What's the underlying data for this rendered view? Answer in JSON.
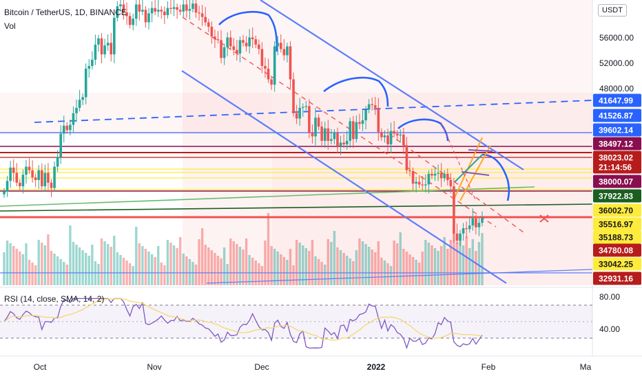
{
  "header": {
    "symbol": "Bitcoin / TetherUS, 1D, BINANCE",
    "volume_label": "Vol",
    "currency_button": "USDT"
  },
  "price_axis": {
    "cut_top_label": "6",
    "ticks": [
      "56000.00",
      "52000.00",
      "48000.00"
    ]
  },
  "price_badges": [
    {
      "label": "41647.99",
      "bg": "#2962ff",
      "fg": "#ffffff"
    },
    {
      "label": "41526.87",
      "bg": "#2962ff",
      "fg": "#ffffff"
    },
    {
      "label": "39602.14",
      "bg": "#2962ff",
      "fg": "#ffffff"
    },
    {
      "label": "38497.12",
      "bg": "#880e4f",
      "fg": "#ffffff"
    },
    {
      "label": "38023.02",
      "bg": "#b71c1c",
      "fg": "#ffffff"
    },
    {
      "label": "21:14:56",
      "bg": "#b71c1c",
      "fg": "#ffffff"
    },
    {
      "label": "38000.07",
      "bg": "#880e4f",
      "fg": "#ffffff"
    },
    {
      "label": "37922.83",
      "bg": "#1b5e20",
      "fg": "#ffffff"
    },
    {
      "label": "36002.70",
      "bg": "#ffeb3b",
      "fg": "#131722"
    },
    {
      "label": "35516.97",
      "bg": "#ffeb3b",
      "fg": "#131722"
    },
    {
      "label": "35188.73",
      "bg": "#ffeb3b",
      "fg": "#131722"
    },
    {
      "label": "34780.08",
      "bg": "#b71c1c",
      "fg": "#ffffff"
    },
    {
      "label": "33042.25",
      "bg": "#ffeb3b",
      "fg": "#131722"
    },
    {
      "label": "32931.16",
      "bg": "#b71c1c",
      "fg": "#ffffff"
    }
  ],
  "time_axis": [
    "Oct",
    "Nov",
    "Dec",
    "2022",
    "Feb",
    "Ma"
  ],
  "rsi": {
    "label": "RSI (14, close, SMA, 14, 2)",
    "ticks": [
      "80.00",
      "40.00"
    ],
    "upper_band": 70,
    "middle_band": 50,
    "lower_band": 30
  },
  "colors": {
    "up": "#26a69a",
    "down": "#ef5350",
    "channel": "#5c7cfa",
    "rsi_line": "#7e57c2",
    "rsi_ma": "#f5d76e"
  },
  "chart_data": {
    "type": "candlestick",
    "symbol": "Bitcoin / TetherUS",
    "interval": "1D",
    "exchange": "BINANCE",
    "price_scale": "linear",
    "price_range": [
      30500,
      62500
    ],
    "price_ticks": [
      56000,
      52000,
      48000
    ],
    "marked_levels": [
      41647.99,
      41526.87,
      39602.14,
      38497.12,
      38023.02,
      38000.07,
      37922.83,
      36002.7,
      35516.97,
      35188.73,
      34780.08,
      33042.25,
      32931.16
    ],
    "last_price": 38023.02,
    "bar_countdown": "21:14:56",
    "x_labels": [
      "Oct",
      "Nov",
      "Dec",
      "2022",
      "Feb",
      "Ma"
    ],
    "closes": [
      41000,
      42200,
      43700,
      43100,
      42000,
      41600,
      42900,
      43800,
      43400,
      42600,
      42300,
      43400,
      41600,
      43100,
      42000,
      41400,
      43800,
      44900,
      47500,
      48400,
      47900,
      48500,
      49800,
      50400,
      51300,
      51600,
      54800,
      55100,
      55800,
      57500,
      58200,
      56400,
      57400,
      57700,
      56400,
      60500,
      61800,
      62000,
      61100,
      60700,
      59700,
      60400,
      62000,
      61200,
      61400,
      60000,
      61000,
      61600,
      61200,
      61400,
      61200,
      60800,
      61600,
      61500,
      61700,
      61400,
      61200,
      62000,
      61300,
      61500,
      62100,
      61100,
      61000,
      60600,
      60000,
      59500,
      58400,
      58100,
      58000,
      56000,
      57200,
      58300,
      57300,
      56900,
      56500,
      58000,
      57700,
      57300,
      58300,
      58100,
      57500,
      57000,
      55100,
      54800,
      53600,
      53000,
      57300,
      57700,
      57000,
      56300,
      57300,
      53600,
      49800,
      49200,
      50400,
      50500,
      50600,
      47600,
      47200,
      49300,
      48300,
      46700,
      48100,
      46700,
      46900,
      47600,
      46100,
      46500,
      46300,
      46700,
      48900,
      46900,
      48800,
      48600,
      49000,
      50200,
      50800,
      50700,
      50400,
      47700,
      47100,
      47300,
      46300,
      47800,
      47500,
      47300,
      47400,
      46200,
      43400,
      43300,
      41900,
      42100,
      41800,
      41700,
      41800,
      43000,
      42800,
      43000,
      43100,
      42500,
      43000,
      42300,
      41600,
      36300,
      35500,
      36300,
      36900,
      36800,
      37200,
      38000,
      37000,
      37500,
      38023
    ],
    "indicators": {
      "volume_pane": {
        "label": "Vol"
      },
      "rsi": {
        "label": "RSI (14, close, SMA, 14, 2)",
        "ticks": [
          80,
          40
        ],
        "bands": [
          70,
          50,
          30
        ]
      }
    }
  }
}
